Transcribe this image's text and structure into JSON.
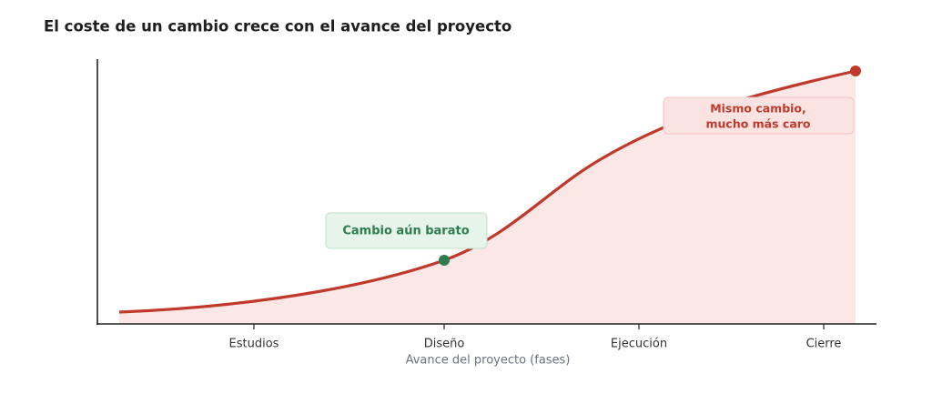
{
  "chart_data": {
    "title": "El coste de un cambio crece con el avance del proyecto",
    "x_label": "Avance del proyecto (fases)",
    "categories": [
      "Estudios",
      "Diseño",
      "Ejecución",
      "Cierre"
    ],
    "annotations": [
      {
        "lines": [
          "Cambio aún barato"
        ]
      },
      {
        "lines": [
          "Mismo cambio,",
          "mucho más caro"
        ]
      }
    ]
  }
}
